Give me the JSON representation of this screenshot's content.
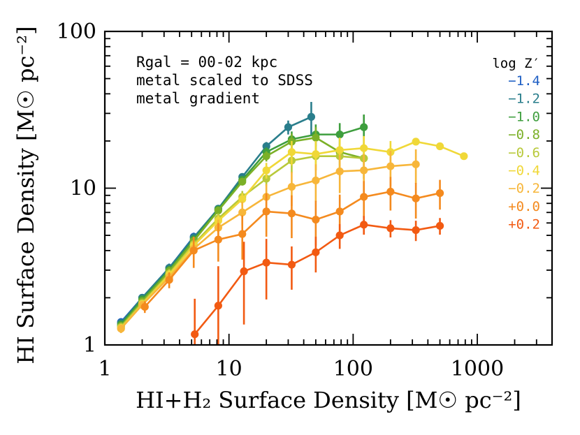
{
  "chart_data": {
    "type": "line",
    "xscale": "log",
    "yscale": "log",
    "xlim": [
      1,
      4000
    ],
    "ylim": [
      1,
      100
    ],
    "xlabel": "HI+H₂ Surface Density [M☉ pc⁻²]",
    "ylabel": "HI Surface Density [M☉ pc⁻²]",
    "x_tick_labels": [
      {
        "value": 1,
        "label": "1"
      },
      {
        "value": 10,
        "label": "10"
      },
      {
        "value": 100,
        "label": "100"
      },
      {
        "value": 1000,
        "label": "1000"
      }
    ],
    "y_tick_labels": [
      {
        "value": 1,
        "label": "1"
      },
      {
        "value": 10,
        "label": "10"
      },
      {
        "value": 100,
        "label": "100"
      }
    ],
    "annotations": [
      "Rgal = 00-02 kpc",
      "metal scaled to SDSS",
      "metal gradient"
    ],
    "legend_title": "log Z′",
    "legend_position": "top-right",
    "series": [
      {
        "name": "-1.4",
        "color": "#1f5fc4",
        "x": [
          1.35,
          2.0,
          3.3,
          5.2
        ],
        "y": [
          1.4,
          2.0,
          3.1,
          4.9
        ],
        "err": [
          0.08,
          0.1,
          0.2,
          0.3
        ]
      },
      {
        "name": "-1.2",
        "color": "#2a7e8c",
        "x": [
          1.35,
          2.0,
          3.3,
          5.2,
          8.2,
          12.8,
          20,
          30,
          46
        ],
        "y": [
          1.38,
          2.0,
          3.1,
          4.85,
          7.4,
          11.8,
          18.5,
          24.5,
          28.5
        ],
        "err": [
          0.08,
          0.1,
          0.2,
          0.3,
          0.4,
          0.6,
          1.2,
          2.5,
          7
        ]
      },
      {
        "name": "-1.0",
        "color": "#3e9e3e",
        "x": [
          1.35,
          2.0,
          3.3,
          5.2,
          8.2,
          12.8,
          20,
          32,
          50,
          78,
          122
        ],
        "y": [
          1.35,
          1.95,
          3.0,
          4.7,
          7.3,
          11.3,
          17.0,
          20.5,
          22.0,
          22.0,
          24.5
        ],
        "err": [
          0.08,
          0.1,
          0.2,
          0.3,
          0.4,
          0.6,
          1.2,
          2.5,
          3.5,
          4,
          5
        ]
      },
      {
        "name": "-0.8",
        "color": "#7bb027",
        "x": [
          1.35,
          2.0,
          3.3,
          5.2,
          8.2,
          12.8,
          20,
          32,
          50,
          78,
          122
        ],
        "y": [
          1.32,
          1.9,
          2.95,
          4.6,
          7.2,
          11.0,
          16.0,
          19.8,
          21.0,
          17.0,
          15.5
        ],
        "err": [
          0.08,
          0.1,
          0.2,
          0.3,
          0.4,
          0.6,
          1.2,
          2.5,
          3.5,
          4,
          4
        ]
      },
      {
        "name": "-0.6",
        "color": "#b8c93a",
        "x": [
          1.35,
          2.0,
          3.3,
          5.2,
          8.2,
          12.8,
          20,
          32,
          50,
          78,
          122
        ],
        "y": [
          1.3,
          1.85,
          2.85,
          4.4,
          6.4,
          8.8,
          11.5,
          15.0,
          16.0,
          16.0,
          15.5
        ],
        "err": [
          0.08,
          0.1,
          0.2,
          0.3,
          0.5,
          0.8,
          1.2,
          2.5,
          3,
          3.5,
          4
        ]
      },
      {
        "name": "-0.4",
        "color": "#f0d838",
        "x": [
          1.35,
          2.0,
          3.3,
          5.2,
          8.2,
          12.8,
          20,
          32,
          50,
          78,
          122,
          200,
          320,
          500,
          780
        ],
        "y": [
          1.28,
          1.82,
          2.8,
          4.3,
          6.2,
          8.5,
          13.0,
          17.0,
          16.5,
          17.5,
          18.0,
          17.0,
          19.8,
          18.5,
          16.0
        ],
        "err": [
          0.08,
          0.1,
          0.2,
          0.3,
          0.5,
          0.8,
          1.5,
          3,
          3.5,
          3.5,
          3.5,
          3,
          0.8,
          0.6,
          0.5
        ]
      },
      {
        "name": "-0.2",
        "color": "#f7b63a",
        "x": [
          1.35,
          2.0,
          3.3,
          5.2,
          8.2,
          12.8,
          20,
          32,
          50,
          78,
          122,
          200,
          320
        ],
        "y": [
          1.27,
          1.8,
          2.7,
          4.1,
          5.6,
          7.0,
          8.8,
          10.2,
          11.2,
          12.8,
          13.0,
          13.8,
          14.2
        ],
        "err": [
          0.08,
          0.1,
          0.2,
          0.4,
          0.7,
          1.2,
          1.8,
          2.5,
          3,
          3.5,
          3.5,
          3.5,
          3.5
        ]
      },
      {
        "name": "+0.0",
        "color": "#f48a1e",
        "x": [
          2.1,
          3.3,
          5.2,
          8.2,
          12.8,
          20,
          32,
          50,
          78,
          122,
          200,
          320,
          500
        ],
        "y": [
          1.75,
          2.6,
          4.0,
          4.7,
          5.1,
          7.1,
          6.9,
          6.3,
          7.1,
          8.8,
          9.5,
          8.6,
          9.3
        ],
        "err": [
          0.15,
          0.3,
          0.9,
          1.3,
          1.6,
          2.2,
          2.1,
          2.0,
          2.0,
          2.3,
          2.3,
          2.2,
          2.0
        ]
      },
      {
        "name": "+0.2",
        "color": "#f25a12",
        "x": [
          5.3,
          8.2,
          13.2,
          20,
          32,
          50,
          78,
          122,
          200,
          320,
          500
        ],
        "y": [
          1.17,
          1.78,
          2.95,
          3.35,
          3.25,
          3.9,
          5.0,
          5.85,
          5.55,
          5.4,
          5.75
        ],
        "err": [
          0.8,
          1.4,
          1.6,
          1.4,
          1.0,
          1.0,
          0.9,
          0.8,
          0.7,
          0.8,
          0.7
        ]
      }
    ]
  }
}
